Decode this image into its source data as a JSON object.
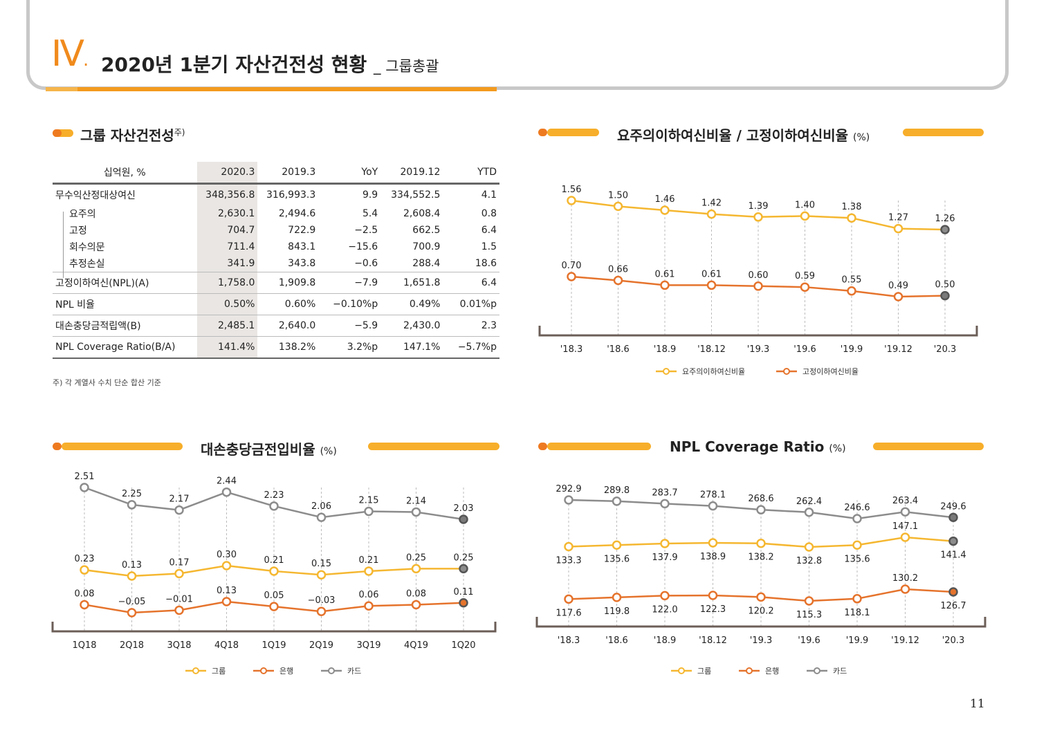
{
  "header": {
    "roman": "Ⅳ",
    "dot": ".",
    "title": "2020년 1분기 자산건전성 현황",
    "subtitle": "_ 그룹총괄"
  },
  "table_section": {
    "title": "그룹 자산건전성",
    "title_mark": "주)",
    "headers": [
      "십억원, %",
      "2020.3",
      "2019.3",
      "YoY",
      "2019.12",
      "YTD"
    ],
    "rows": [
      [
        "무수익산정대상여신",
        "348,356.8",
        "316,993.3",
        "9.9",
        "334,552.5",
        "4.1"
      ],
      [
        "요주의",
        "2,630.1",
        "2,494.6",
        "5.4",
        "2,608.4",
        "0.8"
      ],
      [
        "고정",
        "704.7",
        "722.9",
        "−2.5",
        "662.5",
        "6.4"
      ],
      [
        "회수의문",
        "711.4",
        "843.1",
        "−15.6",
        "700.9",
        "1.5"
      ],
      [
        "추정손실",
        "341.9",
        "343.8",
        "−0.6",
        "288.4",
        "18.6"
      ],
      [
        "고정이하여신(NPL)(A)",
        "1,758.0",
        "1,909.8",
        "−7.9",
        "1,651.8",
        "6.4"
      ],
      [
        "NPL 비율",
        "0.50%",
        "0.60%",
        "−0.10%p",
        "0.49%",
        "0.01%p"
      ],
      [
        "대손충당금적립액(B)",
        "2,485.1",
        "2,640.0",
        "−5.9",
        "2,430.0",
        "2.3"
      ],
      [
        "NPL Coverage Ratio(B/A)",
        "141.4%",
        "138.2%",
        "3.2%p",
        "147.1%",
        "−5.7%p"
      ]
    ],
    "footnote": "주) 각 계열사 수치 단순 합산 기준"
  },
  "colors": {
    "group": "#f5b730",
    "bank": "#e5732c",
    "card": "#8c8c8c",
    "accent": "#f08a1c"
  },
  "chart_data": [
    {
      "type": "line",
      "title": "요주의이하여신비율 / 고정이하여신비율",
      "unit": "(%)",
      "categories": [
        "'18.3",
        "'18.6",
        "'18.9",
        "'18.12",
        "'19.3",
        "'19.6",
        "'19.9",
        "'19.12",
        "'20.3"
      ],
      "series": [
        {
          "name": "요주의이하여신비율",
          "color": "#f5b730",
          "values": [
            1.56,
            1.5,
            1.46,
            1.42,
            1.39,
            1.4,
            1.38,
            1.27,
            1.26
          ],
          "labels": [
            "1.56",
            "1.50",
            "1.46",
            "1.42",
            "1.39",
            "1.40",
            "1.38",
            "1.27",
            "1.26"
          ]
        },
        {
          "name": "고정이하여신비율",
          "color": "#e5732c",
          "values": [
            0.7,
            0.66,
            0.61,
            0.61,
            0.6,
            0.59,
            0.55,
            0.49,
            0.5
          ],
          "labels": [
            "0.70",
            "0.66",
            "0.61",
            "0.61",
            "0.60",
            "0.59",
            "0.55",
            "0.49",
            "0.50"
          ]
        }
      ],
      "legend_position": "bottom"
    },
    {
      "type": "line",
      "title": "대손충당금전입비율",
      "unit": "(%)",
      "categories": [
        "1Q18",
        "2Q18",
        "3Q18",
        "4Q18",
        "1Q19",
        "2Q19",
        "3Q19",
        "4Q19",
        "1Q20"
      ],
      "series": [
        {
          "name": "카드",
          "color": "#8c8c8c",
          "values": [
            2.51,
            2.25,
            2.17,
            2.44,
            2.23,
            2.06,
            2.15,
            2.14,
            2.03
          ],
          "labels": [
            "2.51",
            "2.25",
            "2.17",
            "2.44",
            "2.23",
            "2.06",
            "2.15",
            "2.14",
            "2.03"
          ]
        },
        {
          "name": "그룹",
          "color": "#f5b730",
          "values": [
            0.23,
            0.13,
            0.17,
            0.3,
            0.21,
            0.15,
            0.21,
            0.25,
            0.25
          ],
          "labels": [
            "0.23",
            "0.13",
            "0.17",
            "0.30",
            "0.21",
            "0.15",
            "0.21",
            "0.25",
            "0.25"
          ]
        },
        {
          "name": "은행",
          "color": "#e5732c",
          "values": [
            0.08,
            -0.05,
            -0.01,
            0.13,
            0.05,
            -0.03,
            0.06,
            0.08,
            0.11
          ],
          "labels": [
            "0.08",
            "−0.05",
            "−0.01",
            "0.13",
            "0.05",
            "−0.03",
            "0.06",
            "0.08",
            "0.11"
          ]
        }
      ],
      "legend": [
        "그룹",
        "은행",
        "카드"
      ],
      "legend_position": "bottom"
    },
    {
      "type": "line",
      "title": "NPL Coverage Ratio",
      "unit": "(%)",
      "categories": [
        "'18.3",
        "'18.6",
        "'18.9",
        "'18.12",
        "'19.3",
        "'19.6",
        "'19.9",
        "'19.12",
        "'20.3"
      ],
      "series": [
        {
          "name": "카드",
          "color": "#8c8c8c",
          "values": [
            292.9,
            289.8,
            283.7,
            278.1,
            268.6,
            262.4,
            246.6,
            263.4,
            249.6
          ],
          "labels": [
            "292.9",
            "289.8",
            "283.7",
            "278.1",
            "268.6",
            "262.4",
            "246.6",
            "263.4",
            "249.6"
          ]
        },
        {
          "name": "그룹",
          "color": "#f5b730",
          "values": [
            133.3,
            135.6,
            137.9,
            138.9,
            138.2,
            132.8,
            135.6,
            147.1,
            141.4
          ],
          "labels": [
            "133.3",
            "135.6",
            "137.9",
            "138.9",
            "138.2",
            "132.8",
            "135.6",
            "147.1",
            "141.4"
          ]
        },
        {
          "name": "은행",
          "color": "#e5732c",
          "values": [
            117.6,
            119.8,
            122.0,
            122.3,
            120.2,
            115.3,
            118.1,
            130.2,
            126.7
          ],
          "labels": [
            "117.6",
            "119.8",
            "122.0",
            "122.3",
            "120.2",
            "115.3",
            "118.1",
            "130.2",
            "126.7"
          ]
        }
      ],
      "legend": [
        "그룹",
        "은행",
        "카드"
      ],
      "legend_position": "bottom"
    }
  ],
  "page_number": "11"
}
